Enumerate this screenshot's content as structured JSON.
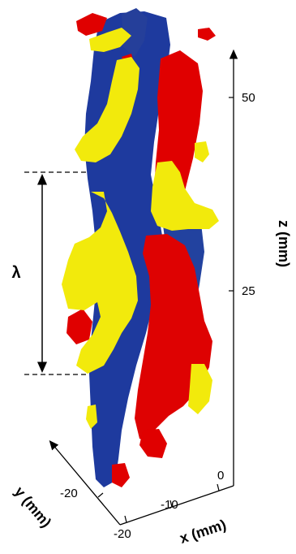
{
  "figure": {
    "wavelength_symbol": "λ",
    "axes": {
      "z": {
        "label": "z (mm)",
        "ticks": [
          "50",
          "25"
        ]
      },
      "x": {
        "label": "x (mm)",
        "ticks": [
          "0",
          "-10",
          "-20"
        ]
      },
      "y": {
        "label": "y (mm)",
        "ticks": [
          "-20"
        ]
      }
    },
    "colors": {
      "blue": "#1e3a9e",
      "red": "#e00000",
      "yellow": "#f2ea0c"
    }
  }
}
